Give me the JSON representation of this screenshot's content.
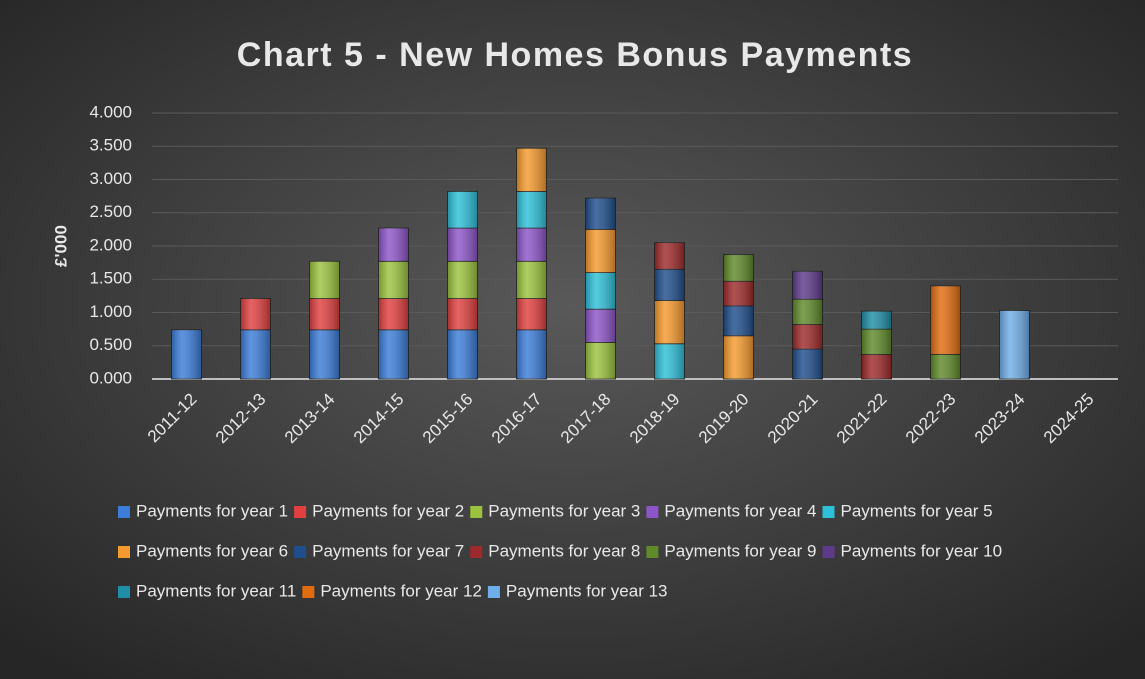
{
  "chart_data": {
    "type": "bar",
    "stacked": true,
    "title": "Chart 5 - New Homes Bonus Payments",
    "y_label": "£'000",
    "categories": [
      "2011-12",
      "2012-13",
      "2013-14",
      "2014-15",
      "2015-16",
      "2016-17",
      "2017-18",
      "2018-19",
      "2019-20",
      "2020-21",
      "2021-22",
      "2022-23",
      "2023-24",
      "2024-25"
    ],
    "ylim": [
      0,
      4
    ],
    "yticks": [
      {
        "value": 0,
        "label": "0.000"
      },
      {
        "value": 0.5,
        "label": "0.500"
      },
      {
        "value": 1,
        "label": "1.000"
      },
      {
        "value": 1.5,
        "label": "1.500"
      },
      {
        "value": 2,
        "label": "2.000"
      },
      {
        "value": 2.5,
        "label": "2.500"
      },
      {
        "value": 3,
        "label": "3.000"
      },
      {
        "value": 3.5,
        "label": "3.500"
      },
      {
        "value": 4,
        "label": "4.000"
      }
    ],
    "grid": true,
    "series": [
      {
        "name": "Payments for year 1",
        "color": "#3b7dd8",
        "values": [
          0.74,
          0.74,
          0.74,
          0.74,
          0.74,
          0.74,
          null,
          null,
          null,
          null,
          null,
          null,
          null,
          null
        ]
      },
      {
        "name": "Payments for year 2",
        "color": "#e0403f",
        "values": [
          null,
          0.47,
          0.47,
          0.47,
          0.47,
          0.47,
          null,
          null,
          null,
          null,
          null,
          null,
          null,
          null
        ]
      },
      {
        "name": "Payments for year 3",
        "color": "#9bc33e",
        "values": [
          null,
          null,
          0.56,
          0.56,
          0.56,
          0.56,
          0.55,
          null,
          null,
          null,
          null,
          null,
          null,
          null
        ]
      },
      {
        "name": "Payments for year 4",
        "color": "#8c55c8",
        "values": [
          null,
          null,
          null,
          0.5,
          0.5,
          0.5,
          0.5,
          null,
          null,
          null,
          null,
          null,
          null,
          null
        ]
      },
      {
        "name": "Payments for year 5",
        "color": "#2ec0d8",
        "values": [
          null,
          null,
          null,
          null,
          0.55,
          0.55,
          0.55,
          0.53,
          null,
          null,
          null,
          null,
          null,
          null
        ]
      },
      {
        "name": "Payments for year 6",
        "color": "#f59a2e",
        "values": [
          null,
          null,
          null,
          null,
          null,
          0.65,
          0.65,
          0.65,
          0.65,
          null,
          null,
          null,
          null,
          null
        ]
      },
      {
        "name": "Payments for year 7",
        "color": "#1f4e8c",
        "values": [
          null,
          null,
          null,
          null,
          null,
          null,
          0.47,
          0.47,
          0.45,
          0.45,
          null,
          null,
          null,
          null
        ]
      },
      {
        "name": "Payments for year 8",
        "color": "#9e2a2b",
        "values": [
          null,
          null,
          null,
          null,
          null,
          null,
          null,
          0.4,
          0.37,
          0.37,
          0.37,
          null,
          null,
          null
        ]
      },
      {
        "name": "Payments for year 9",
        "color": "#5f8a2a",
        "values": [
          null,
          null,
          null,
          null,
          null,
          null,
          null,
          null,
          0.4,
          0.38,
          0.38,
          0.37,
          null,
          null
        ]
      },
      {
        "name": "Payments for year 10",
        "color": "#5e3a8a",
        "values": [
          null,
          null,
          null,
          null,
          null,
          null,
          null,
          null,
          null,
          0.42,
          null,
          null,
          null,
          null
        ]
      },
      {
        "name": "Payments for year 11",
        "color": "#1e8fa6",
        "values": [
          null,
          null,
          null,
          null,
          null,
          null,
          null,
          null,
          null,
          null,
          0.27,
          null,
          null,
          null
        ]
      },
      {
        "name": "Payments for year 12",
        "color": "#e06c10",
        "values": [
          null,
          null,
          null,
          null,
          null,
          null,
          null,
          null,
          null,
          null,
          null,
          1.03,
          null,
          null
        ]
      },
      {
        "name": "Payments for year 13",
        "color": "#6faee8",
        "values": [
          null,
          null,
          null,
          null,
          null,
          null,
          null,
          null,
          null,
          null,
          null,
          null,
          1.03,
          null
        ]
      }
    ]
  }
}
